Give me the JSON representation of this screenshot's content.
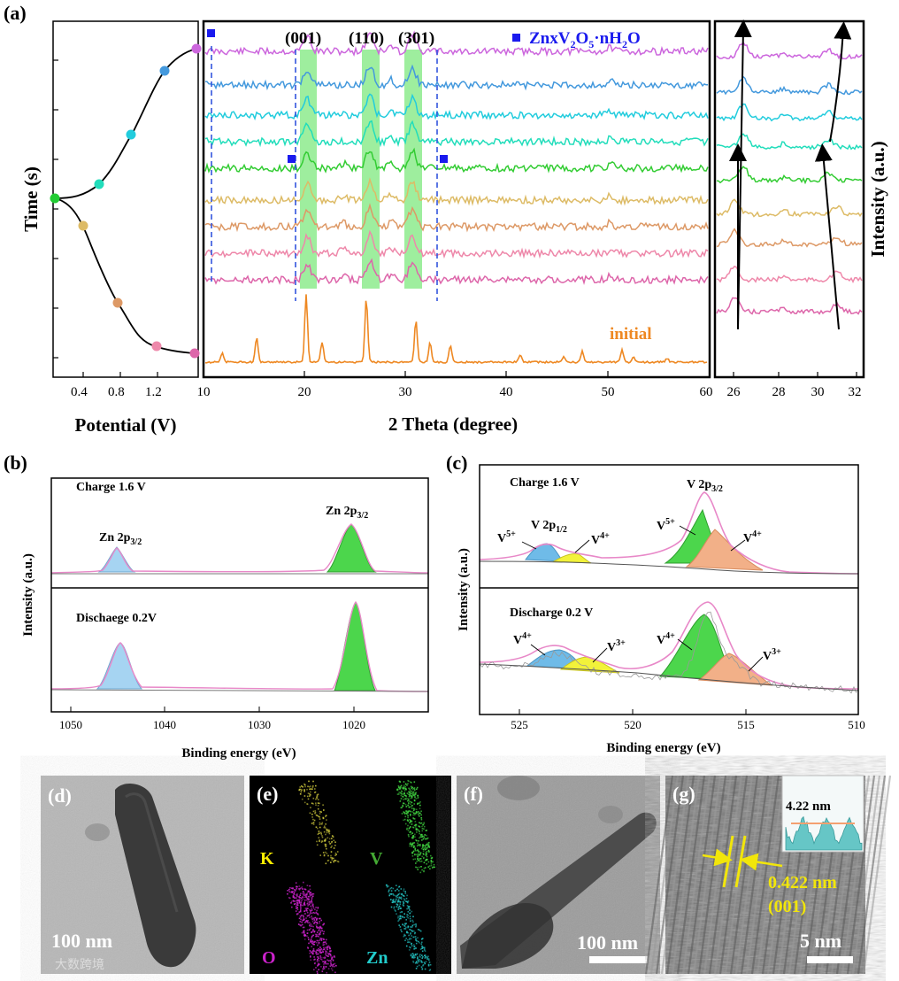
{
  "panels": {
    "a": {
      "label": "(a)",
      "left": {
        "ylabel": "Time (s)",
        "xlabel": "Potential (V)",
        "xticks": [
          "0.4",
          "0.8",
          "1.2"
        ]
      },
      "middle": {
        "xlabel": "2 Theta (degree)",
        "xticks": [
          "10",
          "20",
          "30",
          "40",
          "50",
          "60"
        ],
        "peaks": [
          "(001)",
          "(110)",
          "(301)"
        ],
        "legend_prefix": "ZnxV",
        "legend_sub1": "2",
        "legend_mid": "O",
        "legend_sub2": "5",
        "legend_suffix": "·nH",
        "legend_sub3": "2",
        "legend_end": "O",
        "initial_label": "initial"
      },
      "right": {
        "ylabel": "Intensity (a.u.)",
        "xticks": [
          "26",
          "28",
          "30",
          "32"
        ]
      }
    },
    "b": {
      "label": "(b)",
      "ylabel": "Intensity (a.u.)",
      "xlabel": "Binding energy (eV)",
      "xticks": [
        "1050",
        "1040",
        "1030",
        "1020"
      ],
      "top": {
        "title": "Charge 1.6 V",
        "peak_left_main": "Zn 2p",
        "peak_left_sub": "3/2",
        "peak_right_main": "Zn 2p",
        "peak_right_sub": "3/2"
      },
      "bottom": {
        "title": "Dischaege 0.2V"
      }
    },
    "c": {
      "label": "(c)",
      "ylabel": "Intensity (a.u.)",
      "xlabel": "Binding energy (eV)",
      "xticks": [
        "525",
        "520",
        "515",
        "510"
      ],
      "top": {
        "title": "Charge 1.6 V",
        "v2p32_main": "V 2p",
        "v2p32_sub": "3/2",
        "v2p12_main": "V 2p",
        "v2p12_sub": "1/2",
        "labels": [
          {
            "base": "V",
            "sup": "5+"
          },
          {
            "base": "V",
            "sup": "4+"
          },
          {
            "base": "V",
            "sup": "5+"
          },
          {
            "base": "V",
            "sup": "4+"
          }
        ]
      },
      "bottom": {
        "title": "Discharge 0.2 V",
        "labels": [
          {
            "base": "V",
            "sup": "4+"
          },
          {
            "base": "V",
            "sup": "3+"
          },
          {
            "base": "V",
            "sup": "4+"
          },
          {
            "base": "V",
            "sup": "3+"
          }
        ]
      }
    },
    "d": {
      "label": "(d)",
      "scale": "100 nm"
    },
    "e": {
      "label": "(e)",
      "elements": [
        "K",
        "V",
        "O",
        "Zn"
      ]
    },
    "f": {
      "label": "(f)",
      "scale": "100 nm"
    },
    "g": {
      "label": "(g)",
      "inset_value": "4.22 nm",
      "spacing": "0.422 nm",
      "plane": "(001)",
      "scale": "5 nm"
    }
  },
  "watermark": "大数跨境",
  "colors": {
    "curves": [
      "#cc66dd",
      "#4499dd",
      "#22ccdd",
      "#22ddbb",
      "#33cc33",
      "#ddbb66",
      "#dd9966",
      "#ee88aa",
      "#dd66aa"
    ],
    "initial": "#ee8822",
    "highlight": "#7ee87e",
    "legend_blue": "#1a1aee",
    "zn_blue": "#a6d4f2",
    "green_fill": "#4cd64c",
    "yellow_fill": "#f2f23a",
    "orange_fill": "#f2b088",
    "envelope": "#e888c8"
  }
}
